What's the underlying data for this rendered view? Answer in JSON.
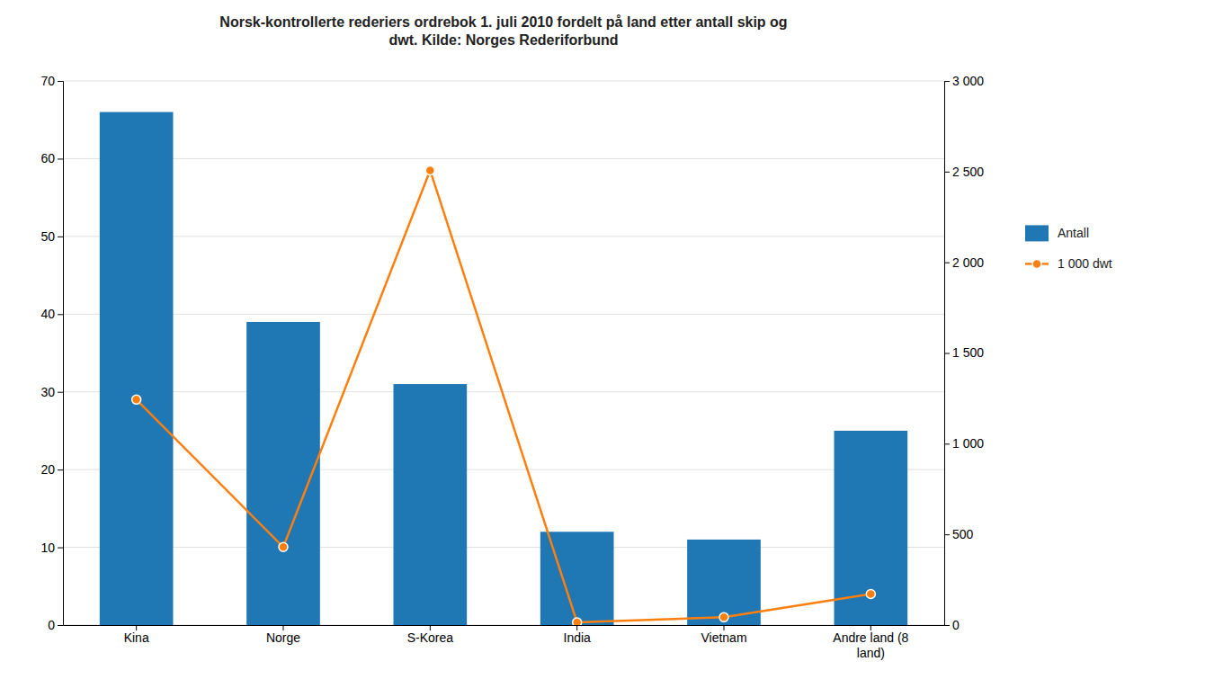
{
  "chart_data": {
    "type": "bar",
    "title": "Norsk-kontrollerte rederiers ordrebok 1. juli 2010 fordelt på land etter antall skip og\ndwt. Kilde: Norges Rederiforbund",
    "categories": [
      "Kina",
      "Norge",
      "S-Korea",
      "India",
      "Vietnam",
      "Andre land (8\nland)"
    ],
    "series": [
      {
        "name": "Antall",
        "type": "bar",
        "values": [
          66,
          39,
          31,
          12,
          11,
          25
        ]
      },
      {
        "name": "1 000 dwt",
        "type": "line",
        "axis": "y2",
        "marker": "circle",
        "values": [
          1243,
          430,
          2507,
          15,
          43,
          171
        ]
      }
    ],
    "ylim": [
      0,
      70
    ],
    "yticks": [
      0,
      10,
      20,
      30,
      40,
      50,
      60,
      70
    ],
    "y2lim": [
      0,
      3000
    ],
    "y2ticks": [
      0,
      500,
      {
        "value": 1000,
        "label": "1 000"
      },
      {
        "value": 1500,
        "label": "1 500"
      },
      {
        "value": 2000,
        "label": "2 000"
      },
      {
        "value": 2500,
        "label": "2 500"
      },
      {
        "value": 3000,
        "label": "3 000"
      }
    ],
    "grid": true,
    "legend": "right"
  }
}
